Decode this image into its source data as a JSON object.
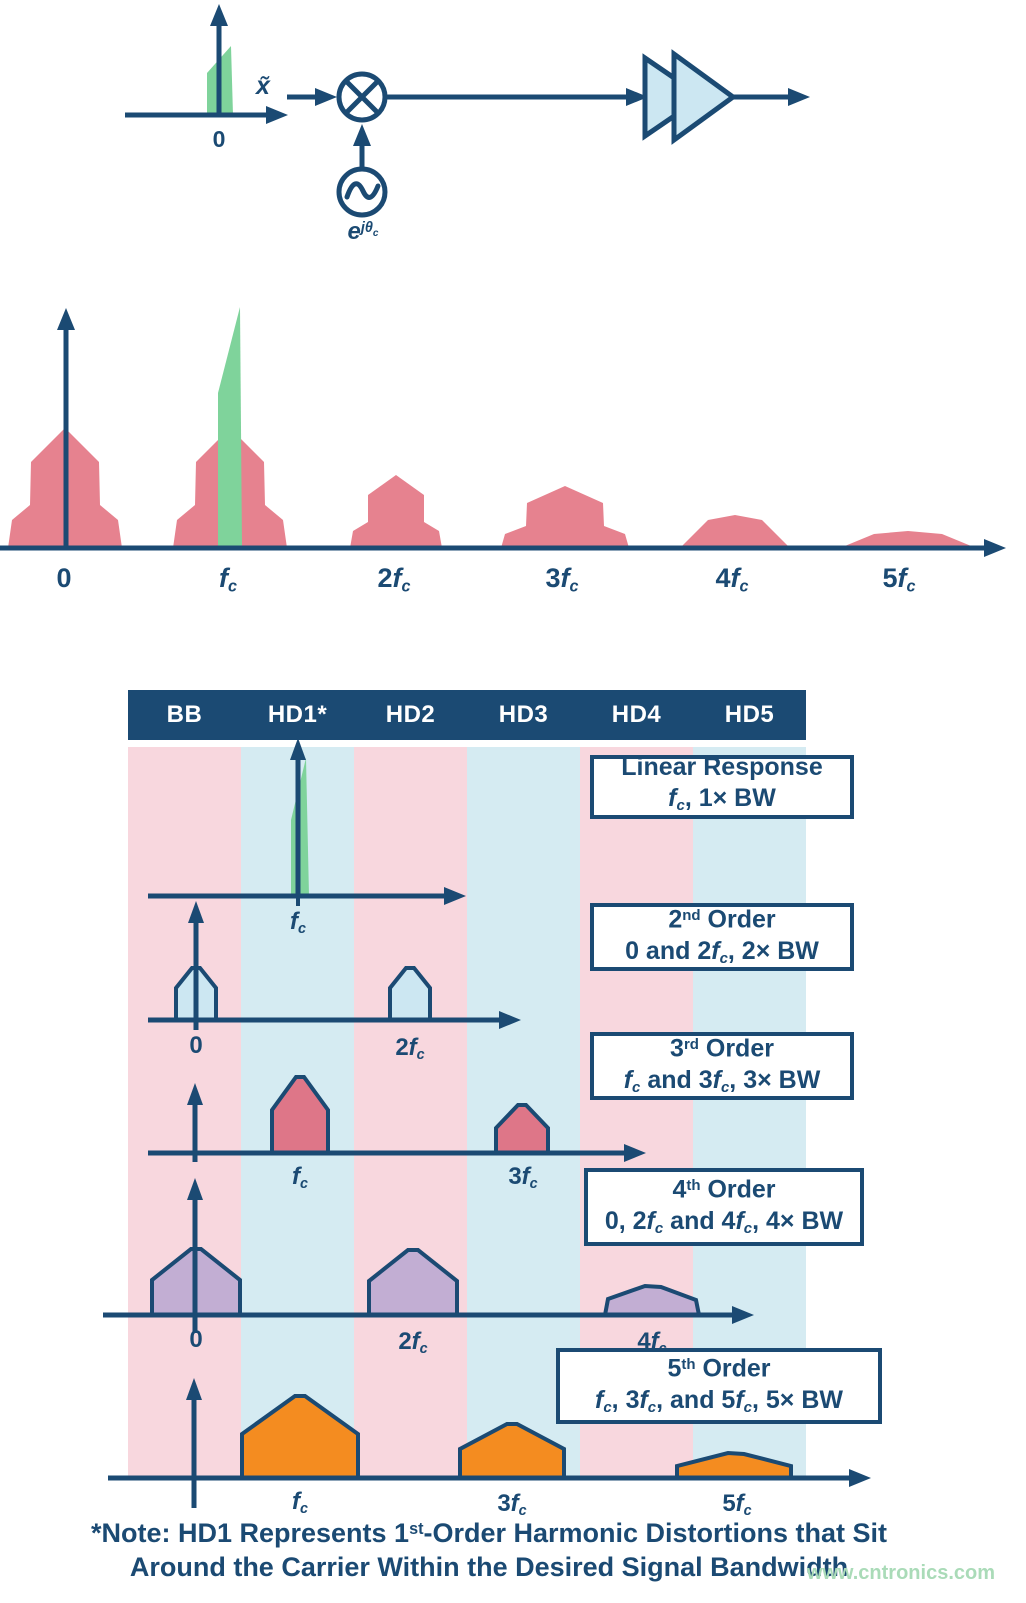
{
  "colors": {
    "navy": "#1b4a73",
    "pink-hump": "#e6828f",
    "green": "#7fd39b",
    "stripe-pink": "#f8d7de",
    "stripe-blue": "#d5ebf2",
    "light-blue": "#cce7f2",
    "rose": "#de7688",
    "purple": "#c2aed3",
    "orange": "#f48c20",
    "watermark": "#aadbb8"
  },
  "block_diagram": {
    "zero_label": [
      {
        "t": "0"
      }
    ],
    "input_label": [
      {
        "t": "x̃",
        "s": "i"
      }
    ],
    "oscillator_label": [
      {
        "t": "e",
        "s": "i"
      },
      {
        "t": "jθ",
        "s": "isup"
      },
      {
        "t": "c",
        "s": "isubsup"
      }
    ]
  },
  "spectrum": {
    "ticks": [
      [
        {
          "t": "0"
        }
      ],
      [
        {
          "t": "f",
          "s": "i"
        },
        {
          "t": "c",
          "s": "sub"
        }
      ],
      [
        {
          "t": "2"
        },
        {
          "t": "f",
          "s": "i"
        },
        {
          "t": "c",
          "s": "sub"
        }
      ],
      [
        {
          "t": "3"
        },
        {
          "t": "f",
          "s": "i"
        },
        {
          "t": "c",
          "s": "sub"
        }
      ],
      [
        {
          "t": "4"
        },
        {
          "t": "f",
          "s": "i"
        },
        {
          "t": "c",
          "s": "sub"
        }
      ],
      [
        {
          "t": "5"
        },
        {
          "t": "f",
          "s": "i"
        },
        {
          "t": "c",
          "s": "sub"
        }
      ]
    ]
  },
  "table": {
    "columns": [
      "BB",
      "HD1*",
      "HD2",
      "HD3",
      "HD4",
      "HD5"
    ],
    "rows": [
      {
        "box_line1": [
          {
            "t": "Linear Response"
          }
        ],
        "box_line2": [
          {
            "t": "f",
            "s": "i"
          },
          {
            "t": "c",
            "s": "sub"
          },
          {
            "t": ", 1× BW"
          }
        ],
        "ticks": [
          [
            {
              "t": "f",
              "s": "i"
            },
            {
              "t": "c",
              "s": "sub"
            }
          ]
        ]
      },
      {
        "box_line1": [
          {
            "t": "2"
          },
          {
            "t": "nd",
            "s": "sup"
          },
          {
            "t": " Order"
          }
        ],
        "box_line2": [
          {
            "t": "0 and 2"
          },
          {
            "t": "f",
            "s": "i"
          },
          {
            "t": "c",
            "s": "sub"
          },
          {
            "t": ", 2× BW"
          }
        ],
        "ticks": [
          [
            {
              "t": "0"
            }
          ],
          [
            {
              "t": "2"
            },
            {
              "t": "f",
              "s": "i"
            },
            {
              "t": "c",
              "s": "sub"
            }
          ]
        ]
      },
      {
        "box_line1": [
          {
            "t": "3"
          },
          {
            "t": "rd",
            "s": "sup"
          },
          {
            "t": " Order"
          }
        ],
        "box_line2": [
          {
            "t": "f",
            "s": "i"
          },
          {
            "t": "c",
            "s": "sub"
          },
          {
            "t": " and 3"
          },
          {
            "t": "f",
            "s": "i"
          },
          {
            "t": "c",
            "s": "sub"
          },
          {
            "t": ", 3× BW"
          }
        ],
        "ticks": [
          [
            {
              "t": "f",
              "s": "i"
            },
            {
              "t": "c",
              "s": "sub"
            }
          ],
          [
            {
              "t": "3"
            },
            {
              "t": "f",
              "s": "i"
            },
            {
              "t": "c",
              "s": "sub"
            }
          ]
        ]
      },
      {
        "box_line1": [
          {
            "t": "4"
          },
          {
            "t": "th",
            "s": "sup"
          },
          {
            "t": " Order"
          }
        ],
        "box_line2": [
          {
            "t": "0, 2"
          },
          {
            "t": "f",
            "s": "i"
          },
          {
            "t": "c",
            "s": "sub"
          },
          {
            "t": " and 4"
          },
          {
            "t": "f",
            "s": "i"
          },
          {
            "t": "c",
            "s": "sub"
          },
          {
            "t": ", 4× BW"
          }
        ],
        "ticks": [
          [
            {
              "t": "0"
            }
          ],
          [
            {
              "t": "2"
            },
            {
              "t": "f",
              "s": "i"
            },
            {
              "t": "c",
              "s": "sub"
            }
          ],
          [
            {
              "t": "4"
            },
            {
              "t": "f",
              "s": "i"
            },
            {
              "t": "c",
              "s": "sub"
            }
          ]
        ]
      },
      {
        "box_line1": [
          {
            "t": "5"
          },
          {
            "t": "th",
            "s": "sup"
          },
          {
            "t": " Order"
          }
        ],
        "box_line2": [
          {
            "t": "f",
            "s": "i"
          },
          {
            "t": "c",
            "s": "sub"
          },
          {
            "t": ", 3"
          },
          {
            "t": "f",
            "s": "i"
          },
          {
            "t": "c",
            "s": "sub"
          },
          {
            "t": ", and 5"
          },
          {
            "t": "f",
            "s": "i"
          },
          {
            "t": "c",
            "s": "sub"
          },
          {
            "t": ", 5× BW"
          }
        ],
        "ticks": [
          [
            {
              "t": "f",
              "s": "i"
            },
            {
              "t": "c",
              "s": "sub"
            }
          ],
          [
            {
              "t": "3"
            },
            {
              "t": "f",
              "s": "i"
            },
            {
              "t": "c",
              "s": "sub"
            }
          ],
          [
            {
              "t": "5"
            },
            {
              "t": "f",
              "s": "i"
            },
            {
              "t": "c",
              "s": "sub"
            }
          ]
        ]
      }
    ]
  },
  "note": {
    "line1": [
      {
        "t": "*Note: HD1 Represents 1"
      },
      {
        "t": "st",
        "s": "sup"
      },
      {
        "t": "-Order Harmonic Distortions that Sit"
      }
    ],
    "line2": [
      {
        "t": "Around the Carrier Within the Desired Signal Bandwidth"
      }
    ]
  },
  "watermark": "www.cntronics.com"
}
